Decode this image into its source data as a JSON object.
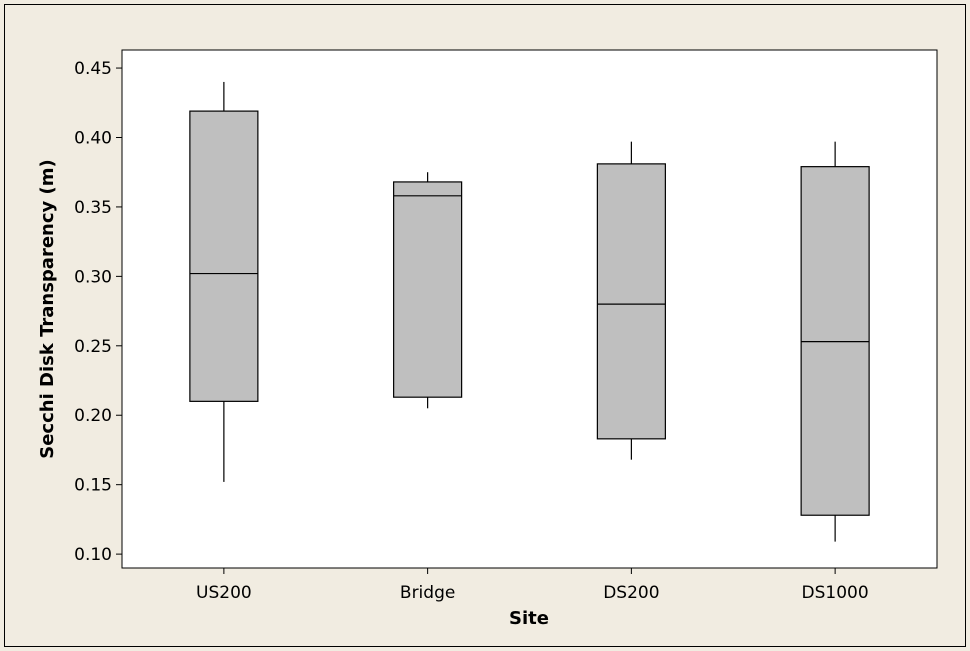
{
  "chart_data": {
    "type": "box",
    "title": "",
    "xlabel": "Site",
    "ylabel": "Secchi Disk Transparency (m)",
    "categories": [
      "US200",
      "Bridge",
      "DS200",
      "DS1000"
    ],
    "boxes": [
      {
        "category": "US200",
        "min": 0.152,
        "q1": 0.21,
        "median": 0.302,
        "q3": 0.419,
        "max": 0.44
      },
      {
        "category": "Bridge",
        "min": 0.205,
        "q1": 0.213,
        "median": 0.358,
        "q3": 0.368,
        "max": 0.375
      },
      {
        "category": "DS200",
        "min": 0.168,
        "q1": 0.183,
        "median": 0.28,
        "q3": 0.381,
        "max": 0.397
      },
      {
        "category": "DS1000",
        "min": 0.109,
        "q1": 0.128,
        "median": 0.253,
        "q3": 0.379,
        "max": 0.397
      }
    ],
    "yticks": [
      "0.10",
      "0.15",
      "0.20",
      "0.25",
      "0.30",
      "0.35",
      "0.40",
      "0.45"
    ],
    "ylim": [
      0.09,
      0.463
    ],
    "grid": false,
    "box_fill": "#bfbfbf",
    "plot_background": "#ffffff",
    "figure_background": "#f1ece1"
  }
}
